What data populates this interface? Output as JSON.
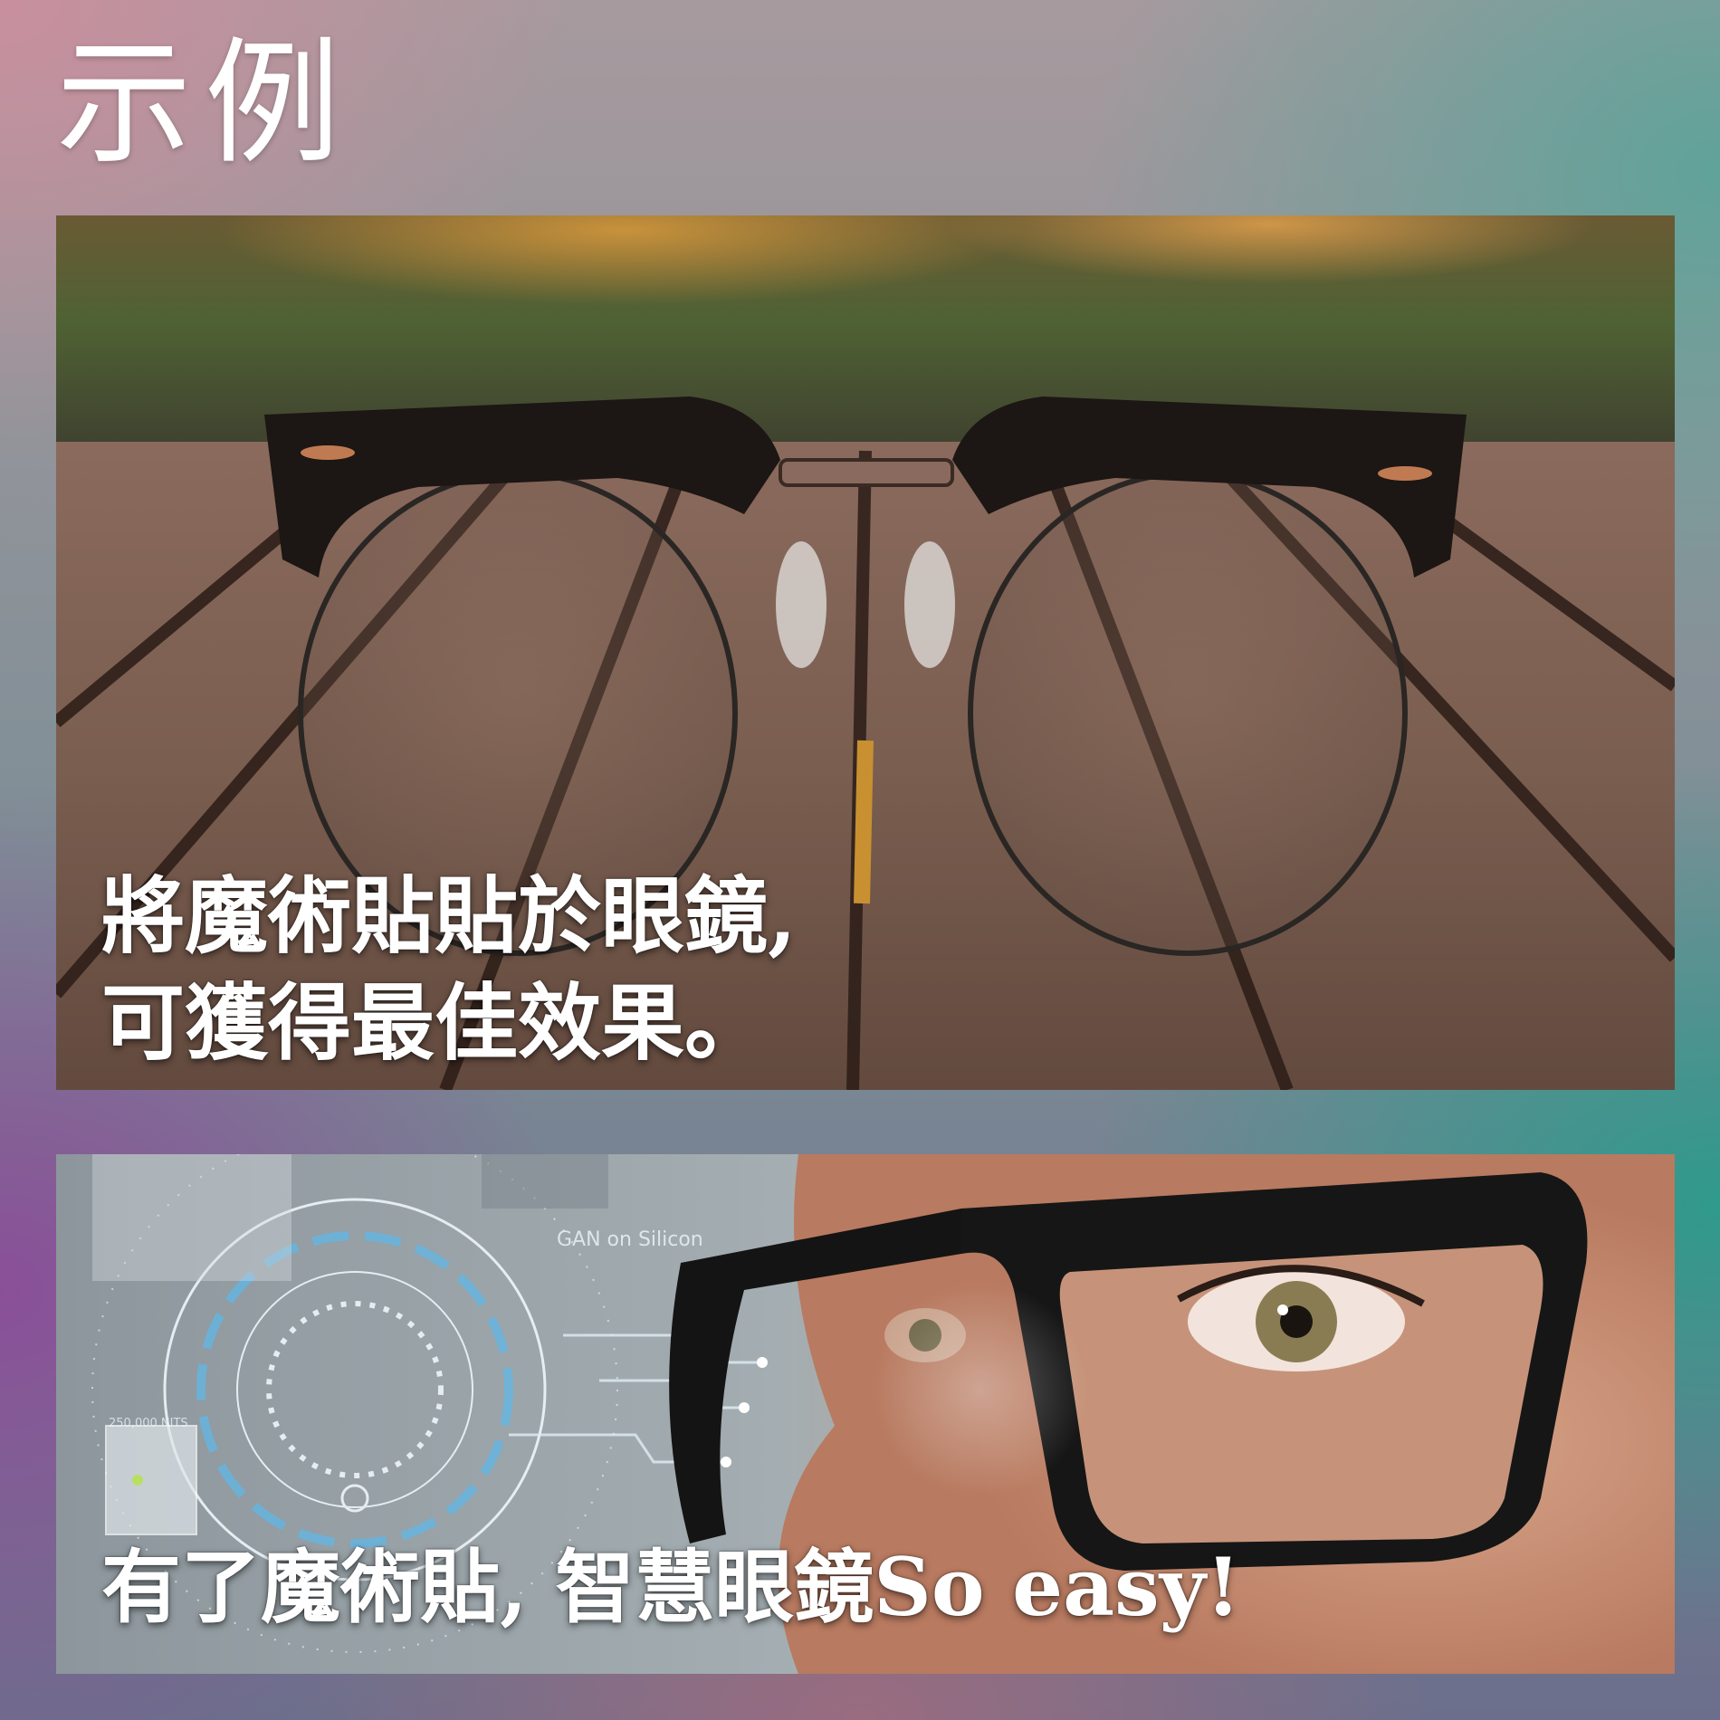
{
  "page": {
    "title": "示例"
  },
  "top_panel": {
    "image": "eyeglasses-on-wooden-deck",
    "caption_line1": "將魔術貼貼於眼鏡,",
    "caption_line2": "可獲得最佳效果。"
  },
  "bottom_panel": {
    "image": "woman-wearing-smart-glasses-with-hud",
    "caption": "有了魔術貼,  智慧眼鏡So easy!",
    "hud_label_1": "GAN on Silicon",
    "hud_label_2": "250,000 NITS"
  },
  "colors": {
    "caption_text": "#ffffff",
    "title_text": "#ffffff",
    "hud_accent": "#5fb8e8"
  }
}
